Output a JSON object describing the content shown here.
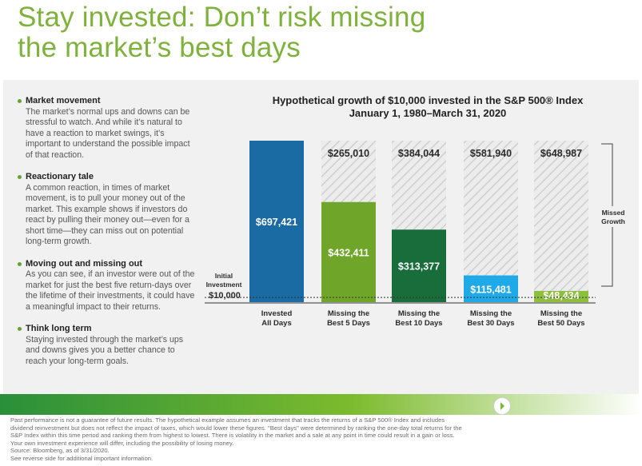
{
  "headline": {
    "line1": "Stay invested: Don’t risk missing",
    "line2": "the market’s best days"
  },
  "bullets": [
    {
      "title": "Market movement",
      "body": "The market’s normal ups and downs can be stressful to watch. And while it’s natural to have a reaction to market swings, it’s important to understand the possible impact of that reaction."
    },
    {
      "title": "Reactionary tale",
      "body": "A common reaction, in times of market movement, is to pull your money out of the market. This example shows if investors do react by pulling their money out—even for a short time—they can miss out on potential long-term growth."
    },
    {
      "title": "Moving out and missing out",
      "body": "As you can see, if an investor were out of the market for just the best five return-days over the lifetime of their investments, it could have a meaningful impact to their returns."
    },
    {
      "title": "Think long term",
      "body": "Staying invested through the market’s ups and downs gives you a better chance to reach your long-term goals."
    }
  ],
  "chart_data": {
    "type": "bar",
    "title": "Hypothetical growth of $10,000 invested in the S&P 500® Index",
    "subtitle": "January 1, 1980–March 31, 2020",
    "categories": [
      "Invested All Days",
      "Missing the Best 5 Days",
      "Missing the Best 10 Days",
      "Missing the Best 30 Days",
      "Missing the Best 50 Days"
    ],
    "category_lines": [
      [
        "Invested",
        "All Days"
      ],
      [
        "Missing the",
        "Best 5 Days"
      ],
      [
        "Missing the",
        "Best 10 Days"
      ],
      [
        "Missing the",
        "Best 30 Days"
      ],
      [
        "Missing the",
        "Best 50 Days"
      ]
    ],
    "values": [
      697421,
      432411,
      313377,
      115481,
      48434
    ],
    "value_labels": [
      "$697,421",
      "$432,411",
      "$313,377",
      "$115,481",
      "$48,434"
    ],
    "missed": [
      null,
      265010,
      384044,
      581940,
      648987
    ],
    "missed_labels": [
      "",
      "$265,010",
      "$384,044",
      "$581,940",
      "$648,987"
    ],
    "bar_colors": [
      "#1a6aa3",
      "#6fa62a",
      "#186d3b",
      "#1fa9e6",
      "#8cbf3c"
    ],
    "missed_pattern_color": "#cfcfcf",
    "initial_investment": 10000,
    "baseline_label_lines": [
      "Initial",
      "Investment"
    ],
    "baseline_value_label": "$10,000",
    "bracket_label_lines": [
      "Missed",
      "Growth"
    ],
    "ylim": [
      0,
      697421
    ]
  },
  "footer": {
    "lines": [
      "Past performance is not a guarantee of future results. The hypothetical example assumes an investment that tracks the returns of a S&P 500® Index and includes",
      "dividend reinvestment but does not reflect the impact of taxes, which would lower these figures. \"Best days\" were determined by ranking the one-day total returns for the",
      "S&P Index within this time period and ranking them from highest to lowest. There is volatility in the market and a sale at any point in time could result in a gain or loss.",
      "Your own investment experience will differ, including the possibility of losing money.",
      "Source: Bloomberg, as of 3/31/2020.",
      "See reverse side for additional important information."
    ]
  }
}
